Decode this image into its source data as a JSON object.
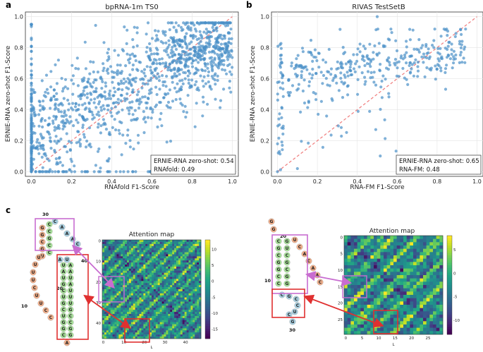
{
  "panels": {
    "a": {
      "letter": "a"
    },
    "b": {
      "letter": "b"
    },
    "c": {
      "letter": "c"
    }
  },
  "chart_data": [
    {
      "type": "scatter",
      "title": "bpRNA-1m TS0",
      "xlabel": "RNAfold F1-Score",
      "ylabel": "ERNIE-RNA zero-shot F1-Score",
      "xlim": [
        -0.03,
        1.03
      ],
      "ylim": [
        -0.03,
        1.03
      ],
      "xticks": [
        "0.0",
        "0.2",
        "0.4",
        "0.6",
        "0.8",
        "1.0"
      ],
      "yticks": [
        "0.0",
        "0.2",
        "0.4",
        "0.6",
        "0.8",
        "1.0"
      ],
      "grid": true,
      "diagonal": "y = x (dashed)",
      "legend_position": "bottom-right",
      "legend": [
        "ERNIE-RNA zero-shot: 0.54",
        "RNAfold: 0.49"
      ],
      "point_color": "#4a90c8",
      "diagonal_color": "#f07b7b",
      "n_points": 1300
    },
    {
      "type": "scatter",
      "title": "RIVAS TestSetB",
      "xlabel": "RNA-FM F1-Score",
      "ylabel": "ERNIE-RNA zero-shot F1-Score",
      "xlim": [
        -0.03,
        1.03
      ],
      "ylim": [
        -0.03,
        1.03
      ],
      "xticks": [
        "0.0",
        "0.2",
        "0.4",
        "0.6",
        "0.8",
        "1.0"
      ],
      "yticks": [
        "0.0",
        "0.2",
        "0.4",
        "0.6",
        "0.8",
        "1.0"
      ],
      "grid": true,
      "diagonal": "y = x (dashed)",
      "legend_position": "bottom-right",
      "legend": [
        "ERNIE-RNA zero-shot: 0.65",
        "RNA-FM: 0.48"
      ],
      "point_color": "#4a90c8",
      "diagonal_color": "#f07b7b",
      "n_points": 430
    },
    {
      "type": "heatmap",
      "title": "Attention map",
      "xlabel": "L",
      "xticks": [
        "0",
        "10",
        "20",
        "30",
        "40"
      ],
      "yticks": [
        "0",
        "10",
        "20",
        "30",
        "40"
      ],
      "colorbar_ticks": [
        "10",
        "5",
        "0",
        "-5",
        "-10",
        "-15"
      ],
      "size": 48,
      "range": [
        -18,
        13
      ],
      "colormap": "viridis"
    },
    {
      "type": "heatmap",
      "title": "Attention map",
      "xlabel": "L",
      "xticks": [
        "0",
        "5",
        "10",
        "15",
        "20",
        "25"
      ],
      "yticks": [
        "0",
        "5",
        "10",
        "15",
        "20",
        "25"
      ],
      "colorbar_ticks": [
        "5",
        "0",
        "-5",
        "-10"
      ],
      "size": 30,
      "range": [
        -13,
        8
      ],
      "colormap": "viridis"
    }
  ],
  "structure_left": {
    "loop_top": [
      "C",
      "A",
      "A",
      "A",
      "C"
    ],
    "stem_left_top": [
      "G",
      "G",
      "C",
      "G",
      "U"
    ],
    "stem_right_top": [
      "C",
      "C",
      "G",
      "C",
      "C"
    ],
    "bulge": [
      "A",
      "U"
    ],
    "stem_left_bottom": [
      "U",
      "A",
      "U",
      "G",
      "C",
      "U",
      "G",
      "C",
      "U",
      "G",
      "G",
      "C"
    ],
    "stem_right_bottom": [
      "A",
      "A",
      "U",
      "A",
      "U",
      "U",
      "U",
      "G",
      "C",
      "C",
      "G",
      "G"
    ],
    "tail": [
      "U",
      "U",
      "U",
      "U",
      "C",
      "U",
      "U",
      "C",
      "C"
    ],
    "labels": [
      "30",
      "40",
      "20",
      "10"
    ]
  },
  "structure_right": {
    "top": [
      "G",
      "G"
    ],
    "tail": [
      "U",
      "C",
      "A",
      "C",
      "A",
      "A",
      "C"
    ],
    "stem_left": [
      "C",
      "G",
      "C",
      "G",
      "G",
      "C",
      "C"
    ],
    "stem_right": [
      "G",
      "U",
      "C",
      "G",
      "C",
      "G",
      "G"
    ],
    "loop": [
      "C",
      "G",
      "C",
      "C",
      "U",
      "C",
      "G"
    ],
    "labels": [
      "20",
      "10",
      "30"
    ]
  }
}
